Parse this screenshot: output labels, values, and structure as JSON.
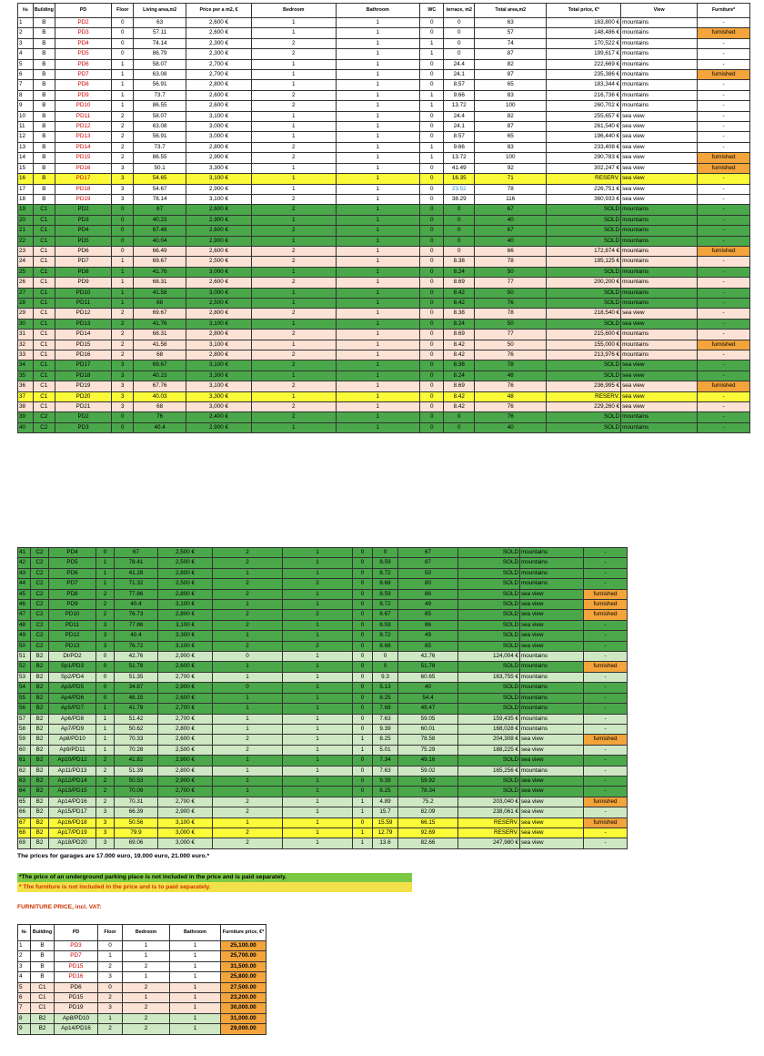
{
  "headers": [
    "№",
    "Building",
    "PD",
    "Floor",
    "Living area,m2",
    "Price per a m2, €",
    "Bedroom",
    "Bathroom",
    "WC",
    "terrace, m2",
    "Total area,m2",
    "Total price, €*",
    "View",
    "Furniture*"
  ],
  "rows1": [
    [
      "1",
      "B",
      "PD2",
      "0",
      "63",
      "2,600 €",
      "1",
      "1",
      "0",
      "0",
      "63",
      "163,800 €",
      "mountains",
      "-"
    ],
    [
      "2",
      "B",
      "PD3",
      "0",
      "57.11",
      "2,600 €",
      "1",
      "1",
      "0",
      "0",
      "57",
      "148,486 €",
      "mountains",
      "furnished"
    ],
    [
      "3",
      "B",
      "PD4",
      "0",
      "74.14",
      "2,300 €",
      "2",
      "1",
      "1",
      "0",
      "74",
      "170,522 €",
      "mountains",
      "-"
    ],
    [
      "4",
      "B",
      "PD5",
      "0",
      "86.79",
      "2,300 €",
      "2",
      "1",
      "1",
      "0",
      "87",
      "199,617 €",
      "mountains",
      "-"
    ],
    [
      "5",
      "B",
      "PD6",
      "1",
      "58.07",
      "2,700 €",
      "1",
      "1",
      "0",
      "24.4",
      "82",
      "222,669 €",
      "mountains",
      "-"
    ],
    [
      "6",
      "B",
      "PD7",
      "1",
      "63.08",
      "2,700 €",
      "1",
      "1",
      "0",
      "24.1",
      "87",
      "235,386 €",
      "mountains",
      "furnished"
    ],
    [
      "7",
      "B",
      "PD8",
      "1",
      "56.91",
      "2,800 €",
      "1",
      "1",
      "0",
      "8.57",
      "65",
      "183,344 €",
      "mountains",
      "-"
    ],
    [
      "8",
      "B",
      "PD9",
      "1",
      "73.7",
      "2,600 €",
      "2",
      "1",
      "1",
      "9.66",
      "83",
      "216,736 €",
      "mountains",
      "-"
    ],
    [
      "9",
      "B",
      "PD10",
      "1",
      "86.55",
      "2,600 €",
      "2",
      "1",
      "1",
      "13.72",
      "100",
      "260,702 €",
      "mountains",
      "-"
    ],
    [
      "10",
      "B",
      "PD11",
      "2",
      "58.07",
      "3,100 €",
      "1",
      "1",
      "0",
      "24.4",
      "82",
      "255,657 €",
      "sea view",
      "-"
    ],
    [
      "11",
      "B",
      "PD12",
      "2",
      "63.08",
      "3,000 €",
      "1",
      "1",
      "0",
      "24.1",
      "87",
      "261,540 €",
      "sea view",
      "-"
    ],
    [
      "12",
      "B",
      "PD13",
      "2",
      "56.91",
      "3,000 €",
      "1",
      "1",
      "0",
      "8.57",
      "65",
      "196,440 €",
      "sea view",
      "-"
    ],
    [
      "13",
      "B",
      "PD14",
      "2",
      "73.7",
      "2,800 €",
      "2",
      "1",
      "1",
      "9.66",
      "83",
      "233,408 €",
      "sea view",
      "-"
    ],
    [
      "14",
      "B",
      "PD15",
      "2",
      "86.55",
      "2,900 €",
      "2",
      "1",
      "1",
      "13.72",
      "100",
      "290,783 €",
      "sea view",
      "furnished"
    ],
    [
      "15",
      "B",
      "PD16",
      "3",
      "50.1",
      "3,300 €",
      "1",
      "1",
      "0",
      "41.49",
      "92",
      "302,247 €",
      "sea view",
      "furnished"
    ],
    [
      "16",
      "B",
      "PD17",
      "3",
      "54.65",
      "3,100 €",
      "1",
      "1",
      "0",
      "16.35",
      "71",
      "RESERV.",
      "sea view",
      "-"
    ],
    [
      "17",
      "B",
      "PD18",
      "3",
      "54.67",
      "2,900 €",
      "1",
      "1",
      "0",
      "23.52",
      "78",
      "226,751 €",
      "sea view",
      "-"
    ],
    [
      "18",
      "B",
      "PD19",
      "3",
      "78.14",
      "3,100 €",
      "2",
      "1",
      "0",
      "38.29",
      "116",
      "360,933 €",
      "sea view",
      "-"
    ],
    [
      "19",
      "C1",
      "PD2",
      "0",
      "67",
      "2,600 €",
      "2",
      "1",
      "0",
      "0",
      "67",
      "SOLD",
      "mountains",
      "-"
    ],
    [
      "20",
      "C1",
      "PD3",
      "0",
      "40.23",
      "2,900 €",
      "1",
      "1",
      "0",
      "0",
      "40",
      "SOLD",
      "mountains",
      "-"
    ],
    [
      "21",
      "C1",
      "PD4",
      "0",
      "67.48",
      "2,600 €",
      "2",
      "1",
      "0",
      "0",
      "67",
      "SOLD",
      "mountains",
      "-"
    ],
    [
      "22",
      "C1",
      "PD5",
      "0",
      "40.04",
      "2,900 €",
      "1",
      "1",
      "0",
      "0",
      "40",
      "SOLD",
      "mountains",
      "-"
    ],
    [
      "23",
      "C1",
      "PD6",
      "0",
      "66.49",
      "2,600 €",
      "2",
      "1",
      "0",
      "0",
      "66",
      "172,874 €",
      "mountains",
      "furnished"
    ],
    [
      "24",
      "C1",
      "PD7",
      "1",
      "69.67",
      "2,500 €",
      "2",
      "1",
      "0",
      "8.38",
      "78",
      "195,125 €",
      "mountains",
      "-"
    ],
    [
      "25",
      "C1",
      "PD8",
      "1",
      "41.76",
      "3,000 €",
      "1",
      "1",
      "0",
      "8.24",
      "50",
      "SOLD",
      "mountains",
      "-"
    ],
    [
      "26",
      "C1",
      "PD9",
      "1",
      "68.31",
      "2,600 €",
      "2",
      "1",
      "0",
      "8.69",
      "77",
      "200,200 €",
      "mountains",
      "-"
    ],
    [
      "27",
      "C1",
      "PD10",
      "1",
      "41.58",
      "3,000 €",
      "1",
      "1",
      "0",
      "8.42",
      "50",
      "SOLD",
      "mountains",
      "-"
    ],
    [
      "28",
      "C1",
      "PD11",
      "1",
      "68",
      "2,500 €",
      "1",
      "1",
      "0",
      "8.42",
      "76",
      "SOLD",
      "mountains",
      "-"
    ],
    [
      "29",
      "C1",
      "PD12",
      "2",
      "69.67",
      "2,800 €",
      "2",
      "1",
      "0",
      "8.38",
      "78",
      "218,540 €",
      "sea view",
      "-"
    ],
    [
      "30",
      "C1",
      "PD13",
      "2",
      "41.76",
      "3,100 €",
      "1",
      "1",
      "0",
      "8.24",
      "50",
      "SOLD",
      "sea view",
      "-"
    ],
    [
      "31",
      "C1",
      "PD14",
      "2",
      "68.31",
      "2,800 €",
      "2",
      "1",
      "0",
      "8.69",
      "77",
      "215,600 €",
      "mountains",
      "-"
    ],
    [
      "32",
      "C1",
      "PD15",
      "2",
      "41.58",
      "3,100 €",
      "1",
      "1",
      "0",
      "8.42",
      "50",
      "155,000 €",
      "mountains",
      "furnished"
    ],
    [
      "33",
      "C1",
      "PD16",
      "2",
      "68",
      "2,800 €",
      "2",
      "1",
      "0",
      "8.42",
      "76",
      "213,976 €",
      "mountains",
      "-"
    ],
    [
      "34",
      "C1",
      "PD17",
      "3",
      "69.67",
      "3,100 €",
      "2",
      "1",
      "0",
      "8.38",
      "78",
      "SOLD",
      "sea view",
      "-"
    ],
    [
      "35",
      "C1",
      "PD18",
      "3",
      "40.23",
      "3,300 €",
      "1",
      "1",
      "0",
      "8.24",
      "48",
      "SOLD",
      "sea view",
      "-"
    ],
    [
      "36",
      "C1",
      "PD19",
      "3",
      "67.76",
      "3,100 €",
      "2",
      "1",
      "0",
      "8.69",
      "76",
      "236,995 €",
      "sea view",
      "furnished"
    ],
    [
      "37",
      "C1",
      "PD20",
      "3",
      "40.03",
      "3,300 €",
      "1",
      "1",
      "0",
      "8.42",
      "48",
      "RESERV.",
      "sea view",
      "-"
    ],
    [
      "38",
      "C1",
      "PD21",
      "3",
      "68",
      "3,000 €",
      "2",
      "1",
      "0",
      "8.42",
      "76",
      "229,260 €",
      "sea view",
      "-"
    ],
    [
      "39",
      "C2",
      "PD2",
      "0",
      "76",
      "2,400 €",
      "2",
      "1",
      "0",
      "0",
      "76",
      "SOLD",
      "mountains",
      "-"
    ],
    [
      "40",
      "C2",
      "PD3",
      "0",
      "40.4",
      "2,900 €",
      "1",
      "1",
      "0",
      "0",
      "40",
      "SOLD",
      "mountains",
      "-"
    ]
  ],
  "rows2": [
    [
      "41",
      "C2",
      "PD4",
      "0",
      "67",
      "2,500 €",
      "2",
      "1",
      "0",
      "0",
      "67",
      "SOLD",
      "mountains",
      "-"
    ],
    [
      "42",
      "C2",
      "PD5",
      "1",
      "78.41",
      "2,500 €",
      "2",
      "1",
      "0",
      "8.59",
      "87",
      "SOLD",
      "mountains",
      "-"
    ],
    [
      "43",
      "C2",
      "PD6",
      "1",
      "41.28",
      "2,800 €",
      "1",
      "1",
      "0",
      "8.72",
      "50",
      "SOLD",
      "mountains",
      "-"
    ],
    [
      "44",
      "C2",
      "PD7",
      "1",
      "71.32",
      "2,500 €",
      "2",
      "2",
      "0",
      "8.68",
      "80",
      "SOLD",
      "mountains",
      "-"
    ],
    [
      "45",
      "C2",
      "PD8",
      "2",
      "77.86",
      "2,800 €",
      "2",
      "1",
      "0",
      "8.59",
      "86",
      "SOLD",
      "sea view",
      "furnished"
    ],
    [
      "46",
      "C2",
      "PD9",
      "2",
      "40.4",
      "3,100 €",
      "1",
      "1",
      "0",
      "8.72",
      "49",
      "SOLD",
      "sea view",
      "furnished"
    ],
    [
      "47",
      "C2",
      "PD10",
      "2",
      "76.73",
      "2,800 €",
      "2",
      "2",
      "0",
      "8.67",
      "85",
      "SOLD",
      "sea view",
      "furnished"
    ],
    [
      "48",
      "C2",
      "PD11",
      "3",
      "77.86",
      "3,100 €",
      "2",
      "1",
      "0",
      "8.59",
      "86",
      "SOLD",
      "sea view",
      "-"
    ],
    [
      "49",
      "C2",
      "PD12",
      "3",
      "40.4",
      "3,300 €",
      "1",
      "1",
      "0",
      "8.72",
      "49",
      "SOLD",
      "sea view",
      "-"
    ],
    [
      "50",
      "C2",
      "PD13",
      "3",
      "76.72",
      "3,100 €",
      "2",
      "2",
      "0",
      "8.68",
      "85",
      "SOLD",
      "sea view",
      "-"
    ],
    [
      "51",
      "B2",
      "DI/PD2",
      "0",
      "42.76",
      "2,900 €",
      "0",
      "1",
      "0",
      "0",
      "42.76",
      "124,004 €",
      "mountains",
      "-"
    ],
    [
      "52",
      "B2",
      "Sp1/PD3",
      "0",
      "51.78",
      "2,600 €",
      "1",
      "1",
      "0",
      "0",
      "51.78",
      "SOLD",
      "mountains",
      "furnished"
    ],
    [
      "53",
      "B2",
      "Sp2/PD4",
      "0",
      "51.35",
      "2,700 €",
      "1",
      "1",
      "0",
      "9.3",
      "60.65",
      "163,755 €",
      "mountains",
      "-"
    ],
    [
      "54",
      "B2",
      "Ap3/PD5",
      "0",
      "34.87",
      "2,900 €",
      "0",
      "1",
      "0",
      "5.13",
      "40",
      "SOLD",
      "mountains",
      "-"
    ],
    [
      "55",
      "B2",
      "Ap4/PD6",
      "0",
      "46.15",
      "2,600 €",
      "1",
      "1",
      "0",
      "8.25",
      "54.4",
      "SOLD",
      "mountains",
      "-"
    ],
    [
      "56",
      "B2",
      "Ap5/PD7",
      "1",
      "41.79",
      "2,700 €",
      "1",
      "1",
      "0",
      "7.68",
      "49.47",
      "SOLD",
      "mountains",
      "-"
    ],
    [
      "57",
      "B2",
      "Ap6/PD8",
      "1",
      "51.42",
      "2,700 €",
      "1",
      "1",
      "0",
      "7.63",
      "59.05",
      "159,435 €",
      "mountains",
      "-"
    ],
    [
      "58",
      "B2",
      "Ap7/PD9",
      "1",
      "50.62",
      "2,800 €",
      "1",
      "1",
      "0",
      "9.39",
      "60.01",
      "168,028 €",
      "mountains",
      "-"
    ],
    [
      "59",
      "B2",
      "Ap8/PD10",
      "1",
      "70.33",
      "2,600 €",
      "2",
      "1",
      "1",
      "8.25",
      "78.58",
      "204,308 €",
      "sea view",
      "furnished"
    ],
    [
      "60",
      "B2",
      "Ap9/PD11",
      "1",
      "70.28",
      "2,500 €",
      "2",
      "1",
      "1",
      "5.01",
      "75.29",
      "188,225 €",
      "sea view",
      "-"
    ],
    [
      "61",
      "B2",
      "Ap10/PD12",
      "2",
      "41.82",
      "2,900 €",
      "1",
      "1",
      "0",
      "7.34",
      "49.16",
      "SOLD",
      "sea view",
      "-"
    ],
    [
      "62",
      "B2",
      "Ap11/PD13",
      "2",
      "51.39",
      "2,800 €",
      "1",
      "1",
      "0",
      "7.63",
      "59.02",
      "165,256 €",
      "mountains",
      "-"
    ],
    [
      "63",
      "B2",
      "Ap12/PD14",
      "2",
      "50.53",
      "2,900 €",
      "1",
      "1",
      "0",
      "9.39",
      "59.92",
      "SOLD",
      "sea view",
      "-"
    ],
    [
      "64",
      "B2",
      "Ap13/PD15",
      "2",
      "70.09",
      "2,700 €",
      "1",
      "1",
      "0",
      "8.25",
      "78.34",
      "SOLD",
      "sea view",
      "-"
    ],
    [
      "65",
      "B2",
      "Ap14/PD16",
      "2",
      "70.31",
      "2,700 €",
      "2",
      "1",
      "1",
      "4.89",
      "75.2",
      "203,040 €",
      "sea view",
      "furnished"
    ],
    [
      "66",
      "B2",
      "Ap15/PD17",
      "3",
      "66.39",
      "2,900 €",
      "2",
      "1",
      "1",
      "15.7",
      "82.09",
      "238,061 €",
      "sea view",
      "-"
    ],
    [
      "67",
      "B2",
      "Ap16/PD18",
      "3",
      "50.56",
      "3,100 €",
      "1",
      "1",
      "0",
      "15.59",
      "66.15",
      "RESERV.",
      "sea view",
      "furnished"
    ],
    [
      "68",
      "B2",
      "Ap17/PD19",
      "3",
      "79.9",
      "3,000 €",
      "2",
      "1",
      "1",
      "12.79",
      "92.69",
      "RESERV.",
      "sea view",
      "-"
    ],
    [
      "69",
      "B2",
      "Ap18/PD20",
      "3",
      "69.06",
      "3,000 €",
      "2",
      "1",
      "1",
      "13.6",
      "82.66",
      "247,980 €",
      "sea view",
      "-"
    ]
  ],
  "garages_text": "The prices for garages are 17.000 euro, 19.000 euro, 21.000 euro.*",
  "note_parking": "*The price of an underground parking place is not included in the price and is paid separately.",
  "note_furniture": "* The furniture is not included in the price and is to paid separately.",
  "furniture_title": "FURNITURE PRICE, incl. VAT:",
  "furniture_headers": [
    "№",
    "Building",
    "PD",
    "Floor",
    "Bedroom",
    "Bathroom",
    "Furniture price, €*"
  ],
  "furniture_rows": [
    [
      "1",
      "B",
      "PD3",
      "0",
      "1",
      "1",
      "25,100.00"
    ],
    [
      "2",
      "B",
      "PD7",
      "1",
      "1",
      "1",
      "25,700.00"
    ],
    [
      "3",
      "B",
      "PD15",
      "2",
      "2",
      "1",
      "31,500.00"
    ],
    [
      "4",
      "B",
      "PD16",
      "3",
      "1",
      "1",
      "25,800.00"
    ],
    [
      "5",
      "C1",
      "PD6",
      "0",
      "2",
      "1",
      "27,500.00"
    ],
    [
      "6",
      "C1",
      "PD15",
      "2",
      "1",
      "1",
      "23,200.00"
    ],
    [
      "7",
      "C1",
      "PD19",
      "3",
      "2",
      "1",
      "30,000.00"
    ],
    [
      "8",
      "B2",
      "Ap8/PD10",
      "1",
      "2",
      "1",
      "31,000.00"
    ],
    [
      "9",
      "B2",
      "Ap14/PD16",
      "2",
      "2",
      "1",
      "29,000.00"
    ]
  ],
  "colors": {
    "sold": "#4aa84a",
    "reserved": "#fafa38",
    "furnished": "#f3a43b",
    "pd_red": "#d40000"
  }
}
